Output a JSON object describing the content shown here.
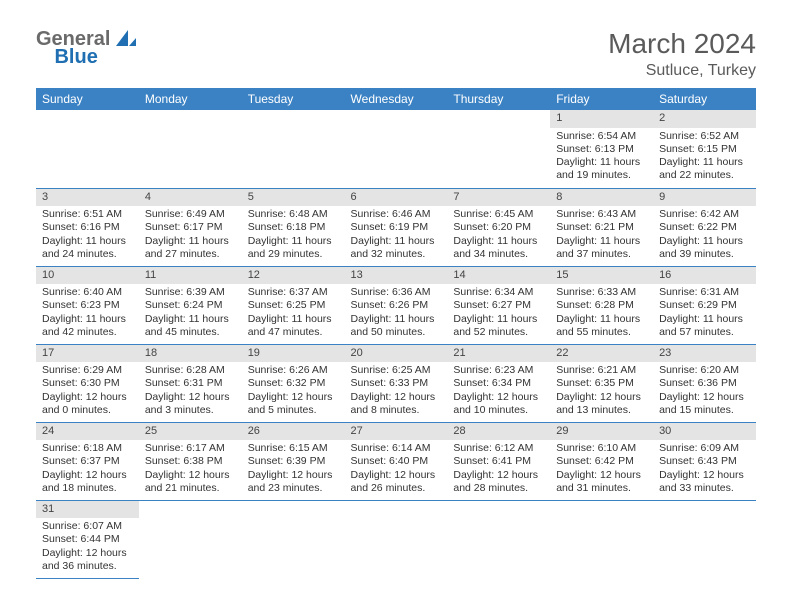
{
  "brand": {
    "part1": "General",
    "part2": "Blue"
  },
  "colors": {
    "accent": "#3b82c4",
    "accent_dark": "#1f6fb2",
    "daynum_bg": "#e4e4e4",
    "text_dark": "#333333",
    "text_muted": "#5a5a5a"
  },
  "title": "March 2024",
  "location": "Sutluce, Turkey",
  "weekdays": [
    "Sunday",
    "Monday",
    "Tuesday",
    "Wednesday",
    "Thursday",
    "Friday",
    "Saturday"
  ],
  "first_weekday_index": 5,
  "days": [
    {
      "n": 1,
      "sr": "6:54 AM",
      "ss": "6:13 PM",
      "dl": "11 hours and 19 minutes."
    },
    {
      "n": 2,
      "sr": "6:52 AM",
      "ss": "6:15 PM",
      "dl": "11 hours and 22 minutes."
    },
    {
      "n": 3,
      "sr": "6:51 AM",
      "ss": "6:16 PM",
      "dl": "11 hours and 24 minutes."
    },
    {
      "n": 4,
      "sr": "6:49 AM",
      "ss": "6:17 PM",
      "dl": "11 hours and 27 minutes."
    },
    {
      "n": 5,
      "sr": "6:48 AM",
      "ss": "6:18 PM",
      "dl": "11 hours and 29 minutes."
    },
    {
      "n": 6,
      "sr": "6:46 AM",
      "ss": "6:19 PM",
      "dl": "11 hours and 32 minutes."
    },
    {
      "n": 7,
      "sr": "6:45 AM",
      "ss": "6:20 PM",
      "dl": "11 hours and 34 minutes."
    },
    {
      "n": 8,
      "sr": "6:43 AM",
      "ss": "6:21 PM",
      "dl": "11 hours and 37 minutes."
    },
    {
      "n": 9,
      "sr": "6:42 AM",
      "ss": "6:22 PM",
      "dl": "11 hours and 39 minutes."
    },
    {
      "n": 10,
      "sr": "6:40 AM",
      "ss": "6:23 PM",
      "dl": "11 hours and 42 minutes."
    },
    {
      "n": 11,
      "sr": "6:39 AM",
      "ss": "6:24 PM",
      "dl": "11 hours and 45 minutes."
    },
    {
      "n": 12,
      "sr": "6:37 AM",
      "ss": "6:25 PM",
      "dl": "11 hours and 47 minutes."
    },
    {
      "n": 13,
      "sr": "6:36 AM",
      "ss": "6:26 PM",
      "dl": "11 hours and 50 minutes."
    },
    {
      "n": 14,
      "sr": "6:34 AM",
      "ss": "6:27 PM",
      "dl": "11 hours and 52 minutes."
    },
    {
      "n": 15,
      "sr": "6:33 AM",
      "ss": "6:28 PM",
      "dl": "11 hours and 55 minutes."
    },
    {
      "n": 16,
      "sr": "6:31 AM",
      "ss": "6:29 PM",
      "dl": "11 hours and 57 minutes."
    },
    {
      "n": 17,
      "sr": "6:29 AM",
      "ss": "6:30 PM",
      "dl": "12 hours and 0 minutes."
    },
    {
      "n": 18,
      "sr": "6:28 AM",
      "ss": "6:31 PM",
      "dl": "12 hours and 3 minutes."
    },
    {
      "n": 19,
      "sr": "6:26 AM",
      "ss": "6:32 PM",
      "dl": "12 hours and 5 minutes."
    },
    {
      "n": 20,
      "sr": "6:25 AM",
      "ss": "6:33 PM",
      "dl": "12 hours and 8 minutes."
    },
    {
      "n": 21,
      "sr": "6:23 AM",
      "ss": "6:34 PM",
      "dl": "12 hours and 10 minutes."
    },
    {
      "n": 22,
      "sr": "6:21 AM",
      "ss": "6:35 PM",
      "dl": "12 hours and 13 minutes."
    },
    {
      "n": 23,
      "sr": "6:20 AM",
      "ss": "6:36 PM",
      "dl": "12 hours and 15 minutes."
    },
    {
      "n": 24,
      "sr": "6:18 AM",
      "ss": "6:37 PM",
      "dl": "12 hours and 18 minutes."
    },
    {
      "n": 25,
      "sr": "6:17 AM",
      "ss": "6:38 PM",
      "dl": "12 hours and 21 minutes."
    },
    {
      "n": 26,
      "sr": "6:15 AM",
      "ss": "6:39 PM",
      "dl": "12 hours and 23 minutes."
    },
    {
      "n": 27,
      "sr": "6:14 AM",
      "ss": "6:40 PM",
      "dl": "12 hours and 26 minutes."
    },
    {
      "n": 28,
      "sr": "6:12 AM",
      "ss": "6:41 PM",
      "dl": "12 hours and 28 minutes."
    },
    {
      "n": 29,
      "sr": "6:10 AM",
      "ss": "6:42 PM",
      "dl": "12 hours and 31 minutes."
    },
    {
      "n": 30,
      "sr": "6:09 AM",
      "ss": "6:43 PM",
      "dl": "12 hours and 33 minutes."
    },
    {
      "n": 31,
      "sr": "6:07 AM",
      "ss": "6:44 PM",
      "dl": "12 hours and 36 minutes."
    }
  ],
  "labels": {
    "sunrise": "Sunrise:",
    "sunset": "Sunset:",
    "daylight": "Daylight:"
  }
}
